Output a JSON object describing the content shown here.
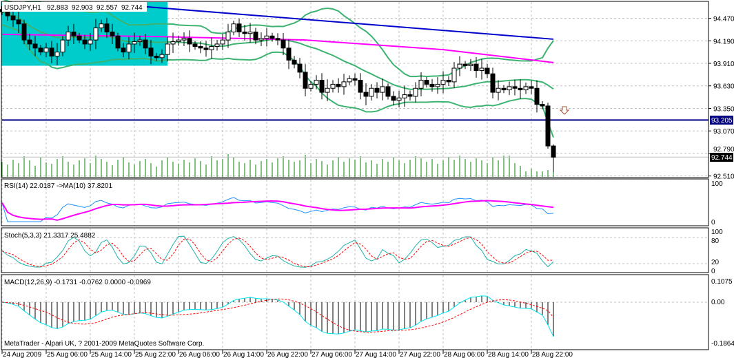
{
  "chart_data": {
    "type": "candlestick",
    "header": {
      "symbol_tf": "USDJPY,H1",
      "open": "92.883",
      "high": "92.903",
      "low": "92.557",
      "close": "92.744"
    },
    "price_axis": {
      "ticks": [
        "94.470",
        "94.190",
        "93.910",
        "93.630",
        "93.350",
        "93.070",
        "92.790",
        "92.510"
      ],
      "range": [
        92.49,
        94.68
      ]
    },
    "horizontal_line": {
      "price": 93.205,
      "label": "93.205",
      "color": "#000080"
    },
    "last_price_label": "92.744",
    "trendline": {
      "from_bar": 23,
      "from_price": 94.63,
      "to_bar": 100,
      "to_price": 94.21,
      "color": "#0000cc"
    },
    "ma_line": {
      "color": "#ff00ff",
      "points": [
        [
          0,
          94.27
        ],
        [
          30,
          94.24
        ],
        [
          55,
          94.2
        ],
        [
          80,
          94.08
        ],
        [
          100,
          93.92
        ]
      ]
    },
    "closes": [
      94.55,
      94.5,
      94.45,
      94.4,
      94.2,
      94.15,
      94.1,
      94.05,
      94.1,
      94.0,
      94.05,
      94.2,
      94.3,
      94.25,
      94.2,
      94.15,
      94.2,
      94.35,
      94.4,
      94.3,
      94.25,
      94.1,
      94.05,
      94.15,
      94.18,
      94.2,
      94.1,
      94.0,
      93.98,
      94.02,
      94.15,
      94.18,
      94.2,
      94.22,
      94.15,
      94.12,
      94.1,
      94.08,
      94.12,
      94.15,
      94.2,
      94.3,
      94.4,
      94.3,
      94.28,
      94.3,
      94.2,
      94.22,
      94.25,
      94.22,
      94.2,
      94.1,
      93.95,
      93.9,
      93.8,
      93.6,
      93.65,
      93.7,
      93.55,
      93.6,
      93.65,
      93.62,
      93.68,
      93.72,
      93.7,
      93.55,
      93.5,
      93.6,
      93.55,
      93.62,
      93.5,
      93.45,
      93.48,
      93.52,
      93.5,
      93.6,
      93.7,
      93.65,
      93.62,
      93.65,
      93.7,
      93.68,
      93.85,
      93.9,
      93.88,
      93.9,
      93.82,
      93.85,
      93.78,
      93.55,
      93.6,
      93.58,
      93.62,
      93.6,
      93.58,
      93.62,
      93.6,
      93.4,
      93.38,
      92.883,
      92.744
    ],
    "last_bar": {
      "open": 92.883,
      "high": 92.903,
      "low": 92.557,
      "close": 92.744
    },
    "volumes": [
      22,
      18,
      25,
      20,
      30,
      24,
      16,
      28,
      21,
      19,
      26,
      30,
      22,
      18,
      24,
      27,
      20,
      31,
      26,
      22,
      17,
      25,
      29,
      21,
      18,
      23,
      26,
      20,
      15,
      24,
      28,
      22,
      19,
      25,
      21,
      27,
      23,
      18,
      30,
      24,
      26,
      33,
      28,
      22,
      20,
      25,
      18,
      23,
      26,
      21,
      27,
      30,
      25,
      22,
      24,
      32,
      20,
      26,
      23,
      18,
      24,
      29,
      22,
      27,
      25,
      30,
      21,
      24,
      19,
      26,
      22,
      28,
      24,
      20,
      25,
      30,
      27,
      22,
      26,
      19,
      24,
      29,
      25,
      31,
      26,
      22,
      27,
      24,
      20,
      28,
      24,
      31,
      31,
      20,
      16,
      8,
      12,
      8,
      8,
      10,
      26
    ],
    "sell_arrow_bar": 102,
    "highlight_box": {
      "from_bar": 0,
      "to_bar": 30,
      "color": "#00cccc"
    },
    "time_labels": [
      "24 Aug 2009",
      "25 Aug 06:00",
      "25 Aug 14:00",
      "25 Aug 22:00",
      "26 Aug 06:00",
      "26 Aug 14:00",
      "26 Aug 22:00",
      "27 Aug 06:00",
      "27 Aug 14:00",
      "27 Aug 22:00",
      "28 Aug 06:00",
      "28 Aug 14:00",
      "28 Aug 22:00"
    ],
    "rsi": {
      "title": "RSI(14) 22.0187   ->MA(10) 37.8201",
      "ticks": [
        "100",
        "0"
      ]
    },
    "stoch": {
      "title": "Stoch(5,3,3) 21.3317 25.4882",
      "ticks": [
        "100",
        "80",
        "20",
        "0"
      ]
    },
    "macd": {
      "title": "MACD(12,26,9) -0.1731 -0.0762 0.0000 -0.0969",
      "ticks": [
        "0.1075",
        "0.00",
        "-0.1864"
      ]
    }
  },
  "footer": {
    "copyright": "MetaTrader - Alpari UK, ? 2001-2009 MetaQuotes Software Corp."
  }
}
